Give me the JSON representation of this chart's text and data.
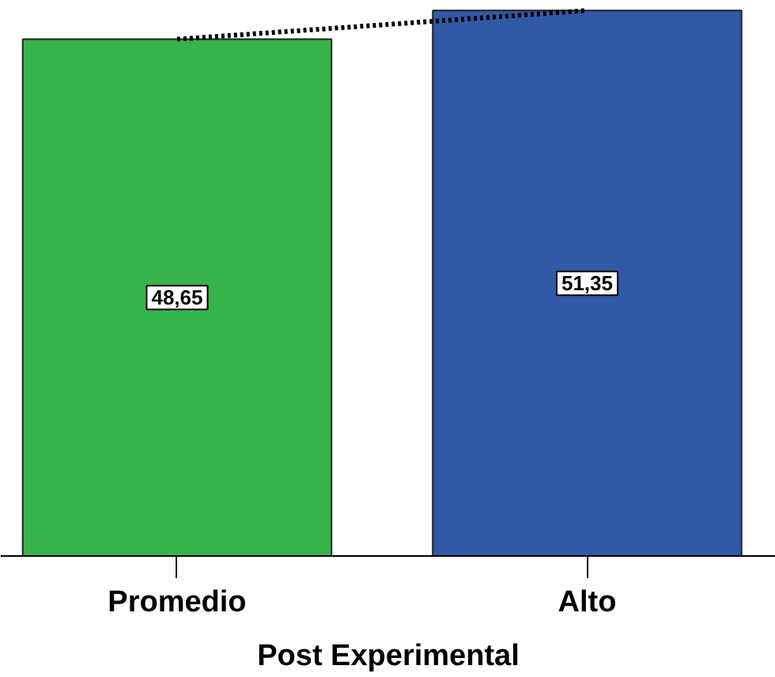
{
  "chart_data": {
    "type": "bar",
    "xlabel": "Post Experimental",
    "categories": [
      "Promedio",
      "Alto"
    ],
    "series": [
      {
        "colors": [
          "#36b34a",
          "#3259a6"
        ],
        "values": [
          48.65,
          51.35
        ],
        "value_labels": [
          "48,65",
          "51,35"
        ]
      },
      {
        "type": "line",
        "color": "#000000",
        "values": [
          48.65,
          51.35
        ],
        "line_style": "dotted",
        "marker": "none"
      }
    ],
    "grid": false,
    "tick_labels": "x"
  }
}
